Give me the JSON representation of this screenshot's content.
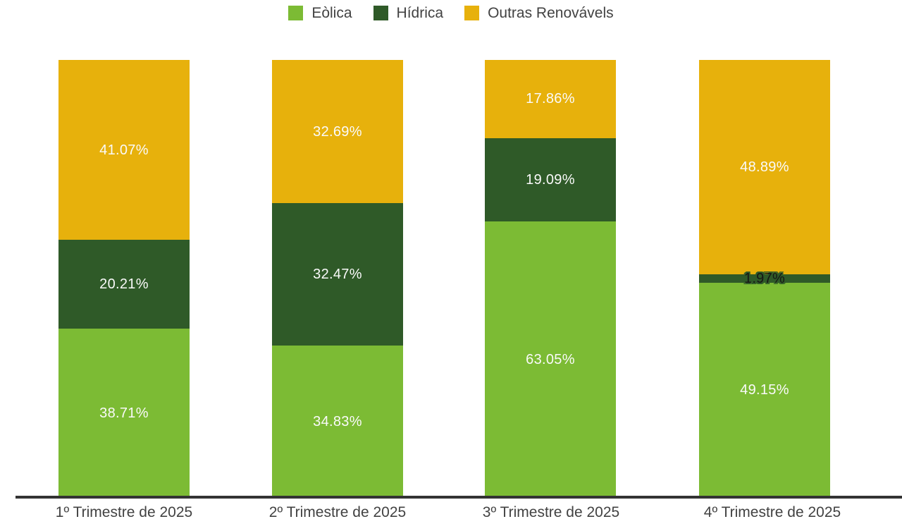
{
  "chart_data": {
    "type": "bar",
    "stacked": true,
    "unit": "%",
    "categories": [
      "1º Trimestre de 2025",
      "2º Trimestre de 2025",
      "3º Trimestre de 2025",
      "4º Trimestre de 2025"
    ],
    "series": [
      {
        "name": "Eòlica",
        "color": "#7CBB34",
        "values": [
          38.71,
          34.83,
          63.05,
          49.15
        ]
      },
      {
        "name": "Hídrica",
        "color": "#2F5A28",
        "values": [
          20.21,
          32.47,
          19.09,
          1.97
        ]
      },
      {
        "name": "Outras Renovávels",
        "color": "#E7B10C",
        "values": [
          41.07,
          32.69,
          17.86,
          48.89
        ]
      }
    ],
    "ylim": [
      0,
      100
    ],
    "grid": false,
    "legend_position": "top",
    "value_label_format": "0.00%",
    "value_label_color": "#FAFAFA",
    "small_label_style": {
      "text_color": "#161616",
      "outline_color": "#2F5A28"
    }
  },
  "axis": {
    "line_color": "#333333",
    "label_color": "#424242"
  }
}
